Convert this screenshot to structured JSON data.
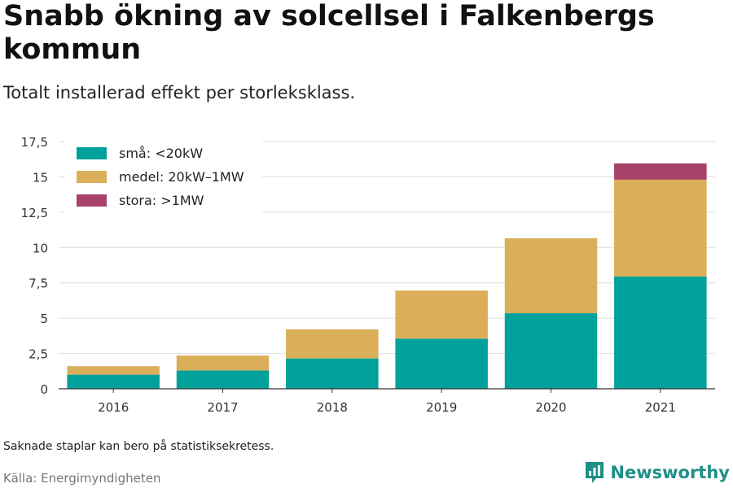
{
  "title": "Snabb ökning av solcellsel i Falkenbergs kommun",
  "subtitle": "Totalt installerad effekt per storleksklass.",
  "note": "Saknade staplar kan bero på statistiksekretess.",
  "source": "Källa: Energimyndigheten",
  "brand": {
    "name": "Newsworthy",
    "icon": "newsworthy-logo-icon",
    "color": "#1f8f87"
  },
  "chart_data": {
    "type": "bar",
    "stacked": true,
    "categories": [
      "2016",
      "2017",
      "2018",
      "2019",
      "2020",
      "2021"
    ],
    "series": [
      {
        "name": "små: <20kW",
        "color": "#00a19a",
        "values": [
          1.0,
          1.3,
          2.15,
          3.55,
          5.35,
          7.95
        ]
      },
      {
        "name": "medel: 20kW–1MW",
        "color": "#dbae5a",
        "values": [
          0.6,
          1.05,
          2.05,
          3.4,
          5.3,
          6.85
        ]
      },
      {
        "name": "stora: >1MW",
        "color": "#a8426a",
        "values": [
          0,
          0,
          0,
          0,
          0,
          1.15
        ]
      }
    ],
    "ylim": [
      0,
      17.5
    ],
    "yticks": [
      0,
      2.5,
      5,
      7.5,
      10,
      12.5,
      15,
      17.5
    ],
    "ytick_labels": [
      "0",
      "2,5",
      "5",
      "7,5",
      "10",
      "12,5",
      "15",
      "17,5"
    ],
    "grid": true,
    "legend_position": "top-left",
    "xlabel": "",
    "ylabel": ""
  }
}
